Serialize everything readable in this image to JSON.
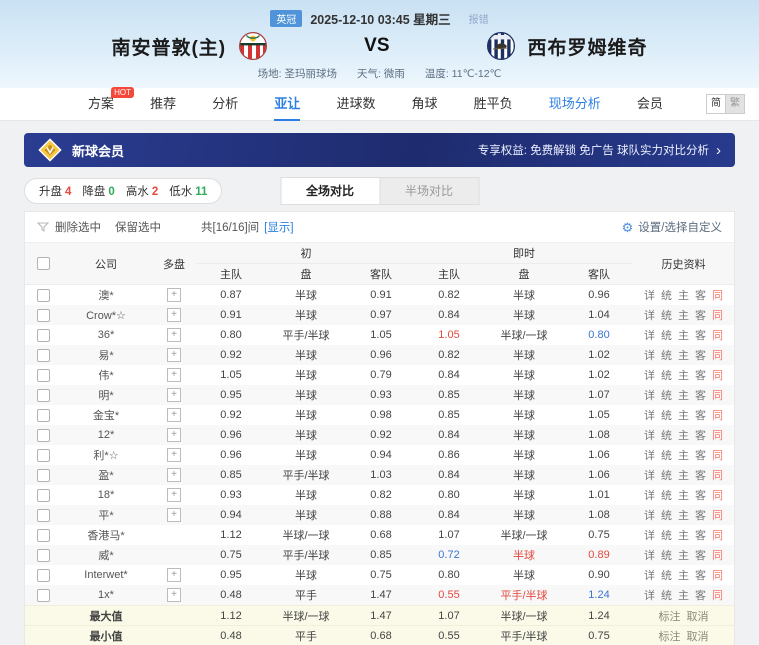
{
  "match_header": {
    "league": "英冠",
    "datetime": "2025-12-10 03:45 星期三",
    "report_error": "报错",
    "home_team": "南安普敦(主)",
    "vs": "VS",
    "away_team": "西布罗姆维奇",
    "venue": "场地: 圣玛丽球场",
    "weather": "天气: 微雨",
    "temperature": "温度: 11℃-12℃"
  },
  "nav": {
    "items": [
      {
        "label": "方案",
        "key": "plan",
        "hot": "HOT"
      },
      {
        "label": "推荐",
        "key": "recommend"
      },
      {
        "label": "分析",
        "key": "analysis"
      },
      {
        "label": "亚让",
        "key": "asian-handicap",
        "active": true
      },
      {
        "label": "进球数",
        "key": "goals"
      },
      {
        "label": "角球",
        "key": "corners"
      },
      {
        "label": "胜平负",
        "key": "win-draw-loss"
      },
      {
        "label": "现场分析",
        "key": "live-analysis",
        "highlight": true
      },
      {
        "label": "会员",
        "key": "member"
      }
    ],
    "lang_simplified": "简",
    "lang_traditional": "繁"
  },
  "promo": {
    "member_title": "新球会员",
    "benefits": "专享权益: 免费解锁 免广告 球队实力对比分析",
    "arrow": "›"
  },
  "filter_pill": {
    "items": [
      {
        "label": "升盘",
        "key": "rise",
        "count": "4",
        "color": "red"
      },
      {
        "label": "降盘",
        "key": "fall",
        "count": "0",
        "color": "green"
      },
      {
        "label": "高水",
        "key": "high-water",
        "count": "2",
        "color": "red"
      },
      {
        "label": "低水",
        "key": "low-water",
        "count": "11",
        "color": "green"
      }
    ]
  },
  "view_tabs": {
    "full": "全场对比",
    "half": "半场对比"
  },
  "toolbar": {
    "delete_selected": "删除选中",
    "keep_selected": "保留选中",
    "count_text": "共[16/16]间",
    "show_link": "[显示]",
    "settings": "设置/选择自定义",
    "gear_icon": "⚙"
  },
  "odds_table": {
    "plus_icon": "+",
    "headers": {
      "company": "公司",
      "multi": "多盘",
      "initial": "初",
      "live": "即时",
      "handicap": "盘",
      "home": "主队",
      "away": "客队",
      "history": "历史资料"
    },
    "history_links": [
      {
        "label": "详",
        "key": "detail"
      },
      {
        "label": "统",
        "key": "stats"
      },
      {
        "label": "主",
        "key": "home"
      },
      {
        "label": "客",
        "key": "away"
      },
      {
        "label": "同",
        "key": "same",
        "red": true
      }
    ],
    "rows": [
      {
        "company": "澳*",
        "multi": true,
        "odds": [
          "0.87",
          "半球",
          "0.91",
          "0.82",
          "半球",
          "0.96"
        ]
      },
      {
        "company": "Crow*☆",
        "multi": true,
        "odds": [
          "0.91",
          "半球",
          "0.97",
          "0.84",
          "半球",
          "1.04"
        ]
      },
      {
        "company": "36*",
        "multi": true,
        "odds": [
          "0.80",
          "平手/半球",
          "1.05",
          "1.05",
          "半球/一球",
          "0.80"
        ],
        "colors": [
          null,
          null,
          null,
          "red",
          null,
          "blue"
        ]
      },
      {
        "company": "易*",
        "multi": true,
        "odds": [
          "0.92",
          "半球",
          "0.96",
          "0.82",
          "半球",
          "1.02"
        ]
      },
      {
        "company": "伟*",
        "multi": true,
        "odds": [
          "1.05",
          "半球",
          "0.79",
          "0.84",
          "半球",
          "1.02"
        ]
      },
      {
        "company": "明*",
        "multi": true,
        "odds": [
          "0.95",
          "半球",
          "0.93",
          "0.85",
          "半球",
          "1.07"
        ]
      },
      {
        "company": "金宝*",
        "multi": true,
        "odds": [
          "0.92",
          "半球",
          "0.98",
          "0.85",
          "半球",
          "1.05"
        ]
      },
      {
        "company": "12*",
        "multi": true,
        "odds": [
          "0.96",
          "半球",
          "0.92",
          "0.84",
          "半球",
          "1.08"
        ]
      },
      {
        "company": "利*☆",
        "multi": true,
        "odds": [
          "0.96",
          "半球",
          "0.94",
          "0.86",
          "半球",
          "1.06"
        ]
      },
      {
        "company": "盈*",
        "multi": true,
        "odds": [
          "0.85",
          "平手/半球",
          "1.03",
          "0.84",
          "半球",
          "1.06"
        ]
      },
      {
        "company": "18*",
        "multi": true,
        "odds": [
          "0.93",
          "半球",
          "0.82",
          "0.80",
          "半球",
          "1.01"
        ]
      },
      {
        "company": "平*",
        "multi": true,
        "odds": [
          "0.94",
          "半球",
          "0.88",
          "0.84",
          "半球",
          "1.08"
        ]
      },
      {
        "company": "香港马*",
        "multi": false,
        "odds": [
          "1.12",
          "半球/一球",
          "0.68",
          "1.07",
          "半球/一球",
          "0.75"
        ]
      },
      {
        "company": "威*",
        "multi": false,
        "odds": [
          "0.75",
          "平手/半球",
          "0.85",
          "0.72",
          "半球",
          "0.89"
        ],
        "colors": [
          null,
          null,
          null,
          "blue",
          "red",
          "red"
        ]
      },
      {
        "company": "Interwet*",
        "multi": true,
        "odds": [
          "0.95",
          "半球",
          "0.75",
          "0.80",
          "半球",
          "0.90"
        ]
      },
      {
        "company": "1x*",
        "multi": true,
        "odds": [
          "0.48",
          "平手",
          "1.47",
          "0.55",
          "平手/半球",
          "1.24"
        ],
        "colors": [
          null,
          null,
          null,
          "red",
          "red",
          "blue"
        ]
      }
    ],
    "summary_rows": [
      {
        "label": "最大值",
        "odds": [
          "1.12",
          "半球/一球",
          "1.47",
          "1.07",
          "半球/一球",
          "1.24"
        ],
        "links": [
          {
            "label": "标注",
            "key": "mark"
          },
          {
            "label": "取消",
            "key": "cancel"
          }
        ]
      },
      {
        "label": "最小值",
        "odds": [
          "0.48",
          "平手",
          "0.68",
          "0.55",
          "平手/半球",
          "0.75"
        ],
        "links": [
          {
            "label": "标注",
            "key": "mark"
          },
          {
            "label": "取消",
            "key": "cancel"
          }
        ]
      }
    ]
  },
  "colors": {
    "accent_blue": "#2b7fe3",
    "hot_red": "#f5483b",
    "rise_red": "#e5493f",
    "drop_blue": "#3a76d0",
    "low_green": "#2faa5e",
    "promo_navy": "#233587",
    "summary_bg": "#fbfae9"
  }
}
